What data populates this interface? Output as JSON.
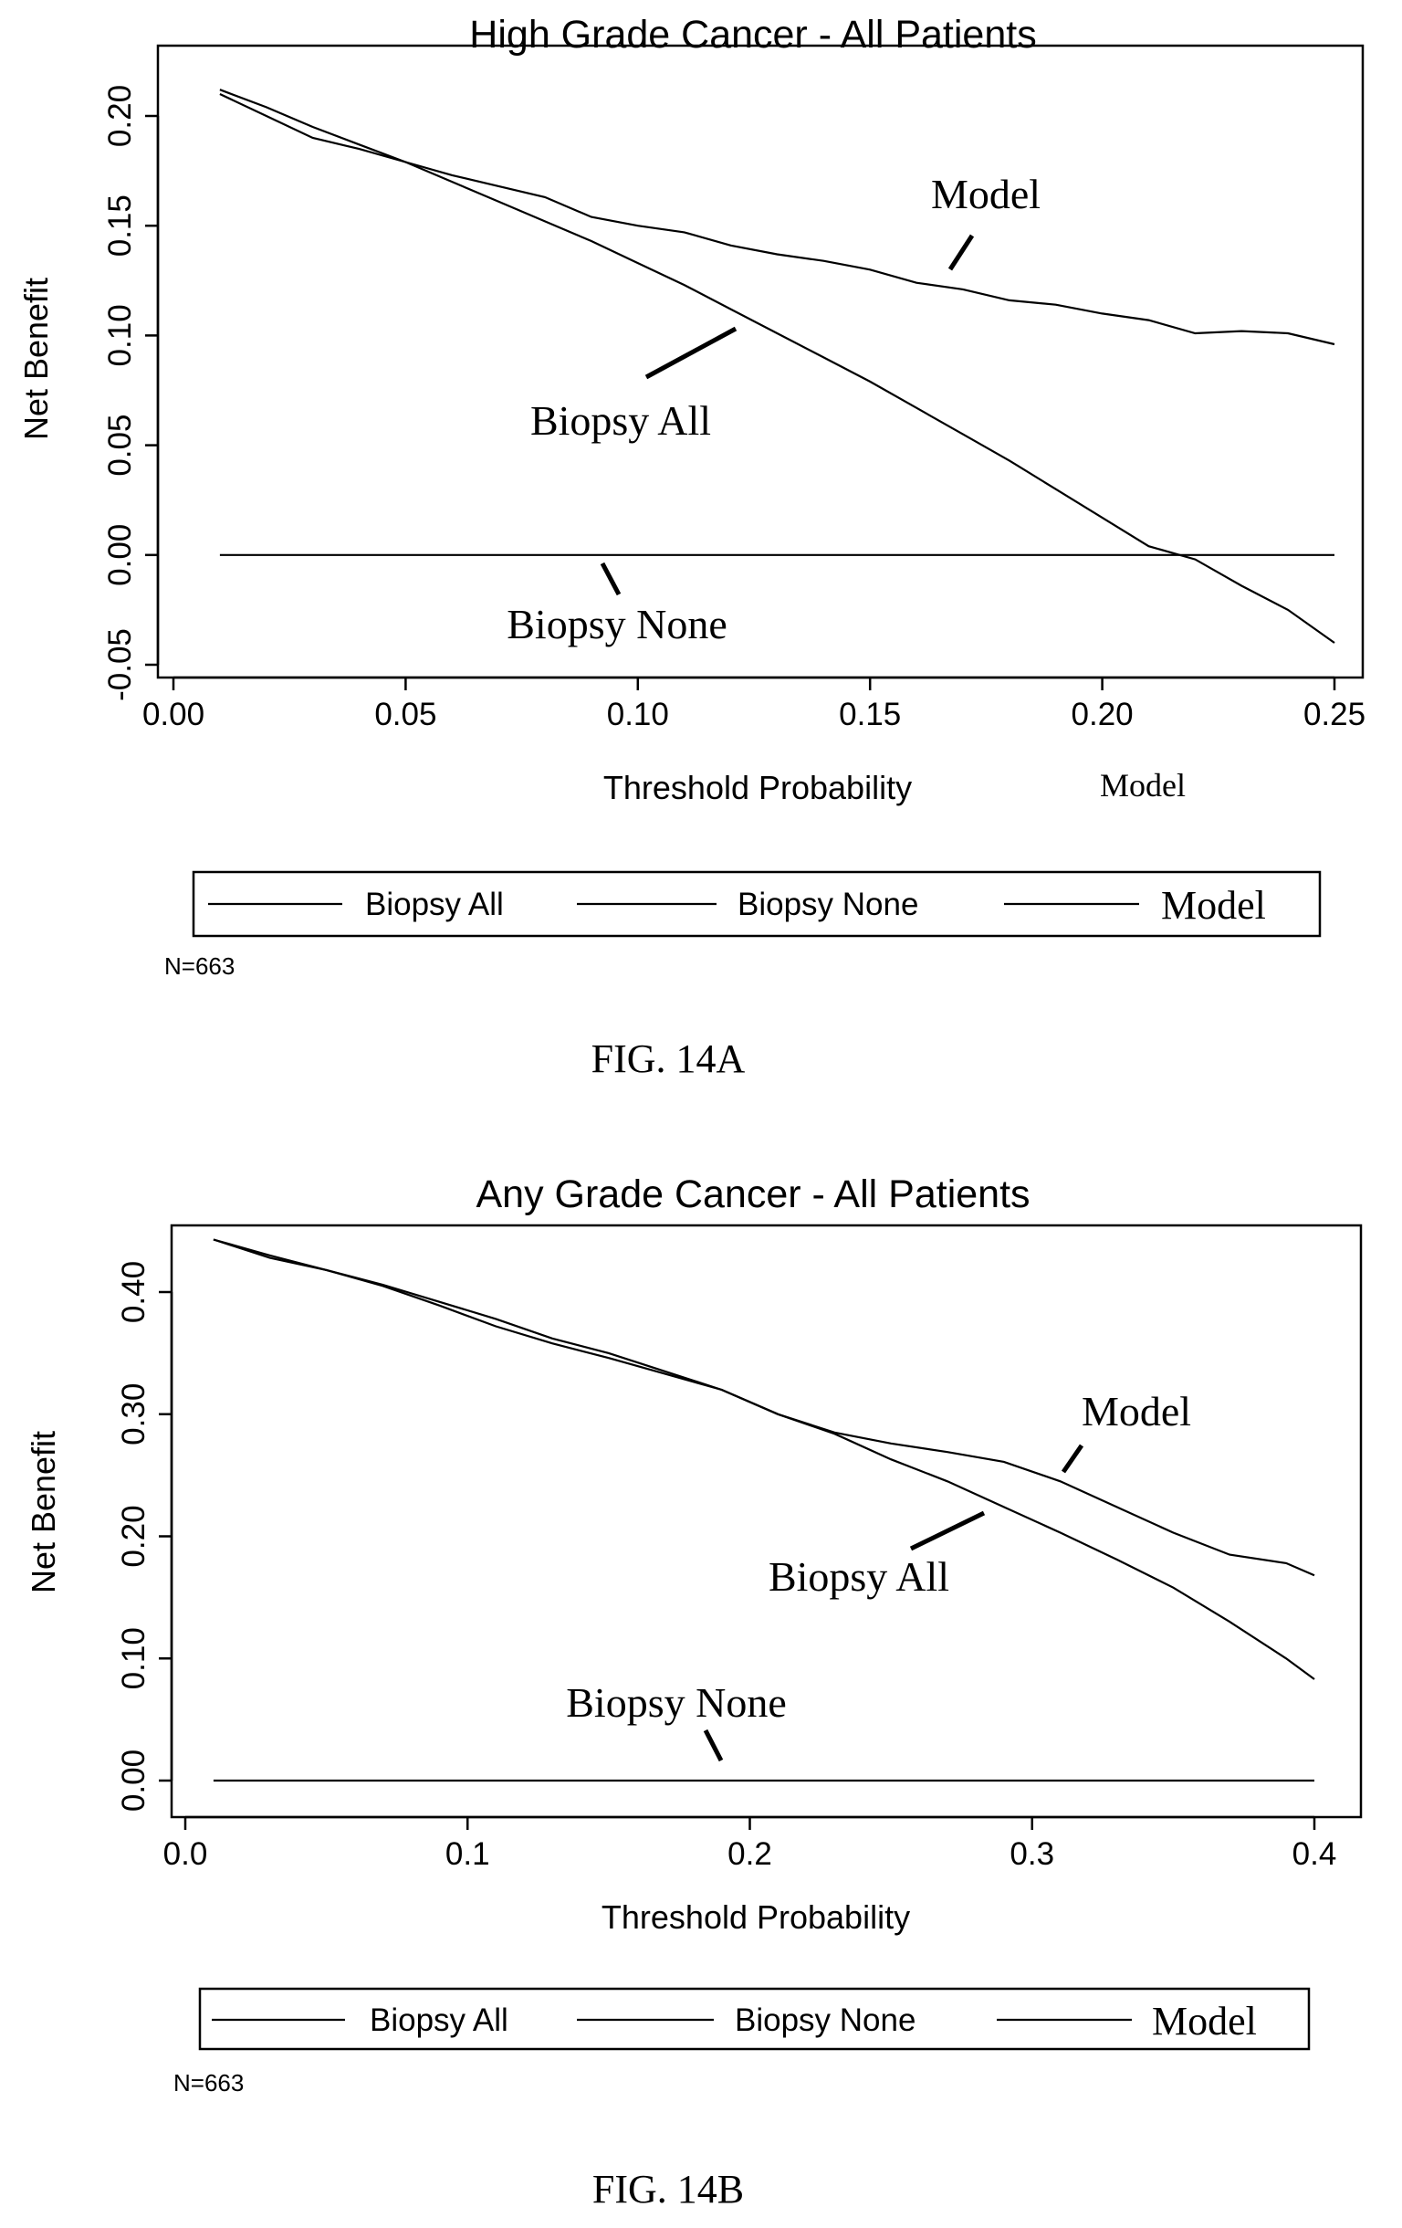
{
  "chart_data": [
    {
      "type": "line",
      "title": "High Grade Cancer - All Patients",
      "xlabel": "Threshold Probability",
      "ylabel": "Net Benefit",
      "xlim": [
        0.0,
        0.25
      ],
      "ylim": [
        -0.05,
        0.2
      ],
      "x_ticks": [
        "0.00",
        "0.05",
        "0.10",
        "0.15",
        "0.20",
        "0.25"
      ],
      "y_ticks": [
        "-0.05",
        "0.00",
        "0.05",
        "0.10",
        "0.15",
        "0.20"
      ],
      "grid": false,
      "stray_label": "Model",
      "series": [
        {
          "name": "Biopsy All",
          "x": [
            0.01,
            0.02,
            0.03,
            0.04,
            0.05,
            0.06,
            0.07,
            0.08,
            0.09,
            0.1,
            0.11,
            0.12,
            0.13,
            0.14,
            0.15,
            0.16,
            0.17,
            0.18,
            0.19,
            0.2,
            0.21,
            0.22,
            0.23,
            0.24,
            0.25
          ],
          "y": [
            0.212,
            0.204,
            0.195,
            0.187,
            0.179,
            0.17,
            0.161,
            0.152,
            0.143,
            0.133,
            0.123,
            0.112,
            0.101,
            0.09,
            0.079,
            0.067,
            0.055,
            0.043,
            0.03,
            0.017,
            0.004,
            -0.002,
            -0.014,
            -0.025,
            -0.04
          ]
        },
        {
          "name": "Biopsy None",
          "x": [
            0.01,
            0.25
          ],
          "y": [
            0.0,
            0.0
          ]
        },
        {
          "name": "Model",
          "x": [
            0.01,
            0.02,
            0.03,
            0.04,
            0.05,
            0.06,
            0.07,
            0.08,
            0.09,
            0.1,
            0.11,
            0.12,
            0.13,
            0.14,
            0.15,
            0.16,
            0.17,
            0.18,
            0.19,
            0.2,
            0.21,
            0.22,
            0.23,
            0.24,
            0.25
          ],
          "y": [
            0.21,
            0.2,
            0.19,
            0.185,
            0.179,
            0.173,
            0.168,
            0.163,
            0.154,
            0.15,
            0.147,
            0.141,
            0.137,
            0.134,
            0.13,
            0.124,
            0.121,
            0.116,
            0.114,
            0.11,
            0.107,
            0.101,
            0.102,
            0.101,
            0.096
          ]
        }
      ],
      "annotations": [
        {
          "text": "Model",
          "x": 0.175,
          "y": 0.16
        },
        {
          "text": "Biopsy All",
          "x": 0.095,
          "y": 0.055
        },
        {
          "text": "Biopsy None",
          "x": 0.095,
          "y": -0.04
        }
      ],
      "legend": {
        "placement": "bottom",
        "entries": [
          "Biopsy All",
          "Biopsy None",
          "Model"
        ]
      },
      "note": "N=663",
      "caption": "FIG. 14A"
    },
    {
      "type": "line",
      "title": "Any Grade Cancer - All Patients",
      "xlabel": "Threshold Probability",
      "ylabel": "Net Benefit",
      "xlim": [
        0.0,
        0.4
      ],
      "ylim": [
        0.0,
        0.45
      ],
      "x_ticks": [
        "0.0",
        "0.1",
        "0.2",
        "0.3",
        "0.4"
      ],
      "y_ticks": [
        "0.00",
        "0.10",
        "0.20",
        "0.30",
        "0.40"
      ],
      "grid": false,
      "series": [
        {
          "name": "Biopsy All",
          "x": [
            0.01,
            0.03,
            0.05,
            0.07,
            0.09,
            0.11,
            0.13,
            0.15,
            0.17,
            0.19,
            0.21,
            0.23,
            0.25,
            0.27,
            0.29,
            0.31,
            0.33,
            0.35,
            0.37,
            0.39,
            0.4
          ],
          "y": [
            0.443,
            0.43,
            0.418,
            0.406,
            0.392,
            0.378,
            0.362,
            0.35,
            0.335,
            0.32,
            0.3,
            0.284,
            0.263,
            0.245,
            0.224,
            0.203,
            0.181,
            0.158,
            0.13,
            0.1,
            0.083
          ]
        },
        {
          "name": "Biopsy None",
          "x": [
            0.01,
            0.4
          ],
          "y": [
            0.0,
            0.0
          ]
        },
        {
          "name": "Model",
          "x": [
            0.01,
            0.03,
            0.05,
            0.07,
            0.09,
            0.11,
            0.13,
            0.15,
            0.17,
            0.19,
            0.21,
            0.23,
            0.25,
            0.27,
            0.29,
            0.31,
            0.33,
            0.35,
            0.37,
            0.39,
            0.4
          ],
          "y": [
            0.443,
            0.428,
            0.418,
            0.405,
            0.389,
            0.372,
            0.358,
            0.346,
            0.333,
            0.32,
            0.3,
            0.285,
            0.276,
            0.269,
            0.261,
            0.245,
            0.224,
            0.203,
            0.185,
            0.178,
            0.168
          ]
        }
      ],
      "annotations": [
        {
          "text": "Model",
          "x": 0.325,
          "y": 0.3
        },
        {
          "text": "Biopsy All",
          "x": 0.235,
          "y": 0.16
        },
        {
          "text": "Biopsy None",
          "x": 0.135,
          "y": 0.055
        }
      ],
      "legend": {
        "placement": "bottom",
        "entries": [
          "Biopsy All",
          "Biopsy None",
          "Model"
        ]
      },
      "note": "N=663",
      "caption": "FIG. 14B"
    }
  ]
}
